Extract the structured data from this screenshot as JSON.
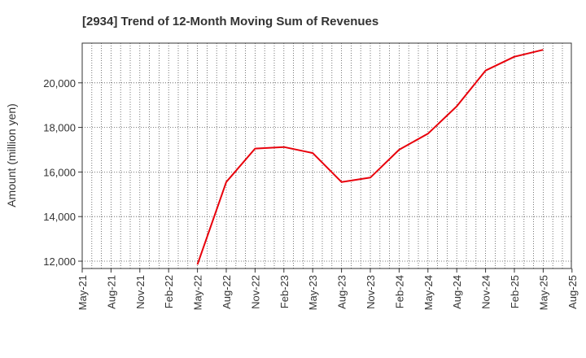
{
  "chart_data": {
    "type": "line",
    "title": "[2934]  Trend of 12-Month Moving Sum of Revenues",
    "ylabel": "Amount (million yen)",
    "xlabel": "",
    "x_ticks": [
      "May-21",
      "Aug-21",
      "Nov-21",
      "Feb-22",
      "May-22",
      "Aug-22",
      "Nov-22",
      "Feb-23",
      "May-23",
      "Aug-23",
      "Nov-23",
      "Feb-24",
      "May-24",
      "Aug-24",
      "Nov-24",
      "Feb-25",
      "May-25",
      "Aug-25"
    ],
    "y_ticks": [
      12000,
      14000,
      16000,
      18000,
      20000
    ],
    "y_tick_labels": [
      "12,000",
      "14,000",
      "16,000",
      "18,000",
      "20,000"
    ],
    "ylim": [
      11650,
      21800
    ],
    "grid": true,
    "series": [
      {
        "color": "#e8000b",
        "x": [
          "May-22",
          "Aug-22",
          "Nov-22",
          "Feb-23",
          "May-23",
          "Aug-23",
          "Nov-23",
          "Feb-24",
          "May-24",
          "Aug-24",
          "Nov-24",
          "Feb-25",
          "May-25"
        ],
        "values": [
          11850,
          15550,
          17050,
          17120,
          16850,
          15550,
          15750,
          17000,
          17720,
          18950,
          20550,
          21170,
          21480
        ]
      }
    ]
  }
}
